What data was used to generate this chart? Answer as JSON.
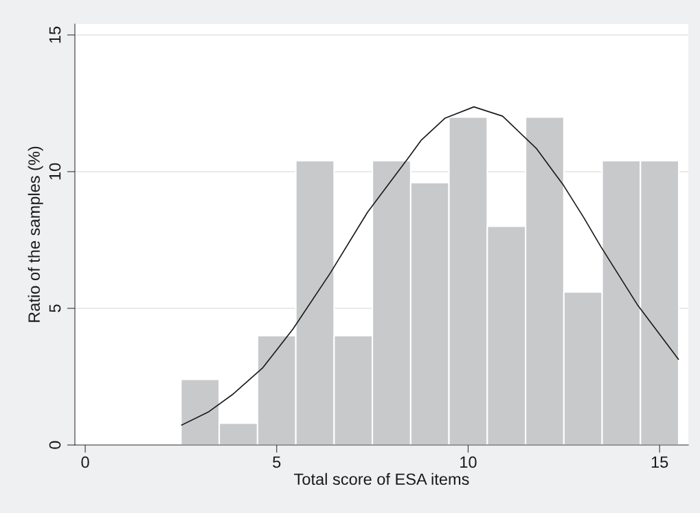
{
  "chart_data": {
    "type": "histogram",
    "xlabel": "Total score of ESA items",
    "ylabel": "Ratio of the samples (%)",
    "bins": [
      2.5,
      3.5,
      4.5,
      5.5,
      6.5,
      7.5,
      8.5,
      9.5,
      10.5,
      11.5,
      12.5,
      13.5,
      14.5,
      15.5
    ],
    "values": [
      2.4,
      0.8,
      4,
      10.4,
      4,
      10.4,
      9.6,
      12,
      8,
      12,
      5.6,
      10.4,
      10.4
    ],
    "color": "#c8c9cb",
    "series": [
      {
        "type": "line",
        "color": "#1a1a1a",
        "x": [
          2.52,
          3.23,
          3.84,
          4.64,
          5.43,
          6.4,
          7.37,
          8.43,
          8.78,
          9.4,
          10.15,
          10.9,
          11.78,
          12.49,
          13.02,
          13.46,
          14.43,
          15.49
        ],
        "values": [
          0.73,
          1.22,
          1.84,
          2.83,
          4.25,
          6.29,
          8.51,
          10.49,
          11.16,
          11.96,
          12.37,
          12.03,
          10.85,
          9.5,
          8.32,
          7.27,
          5.11,
          3.14
        ]
      }
    ],
    "xlim": [
      -0.27,
      15.75
    ],
    "ylim": [
      0,
      15.4
    ],
    "xticks": [
      0,
      5,
      10,
      15
    ],
    "yticks": [
      0,
      5,
      10,
      15
    ],
    "grid": "y",
    "marker": "none",
    "line_style": "solid"
  }
}
